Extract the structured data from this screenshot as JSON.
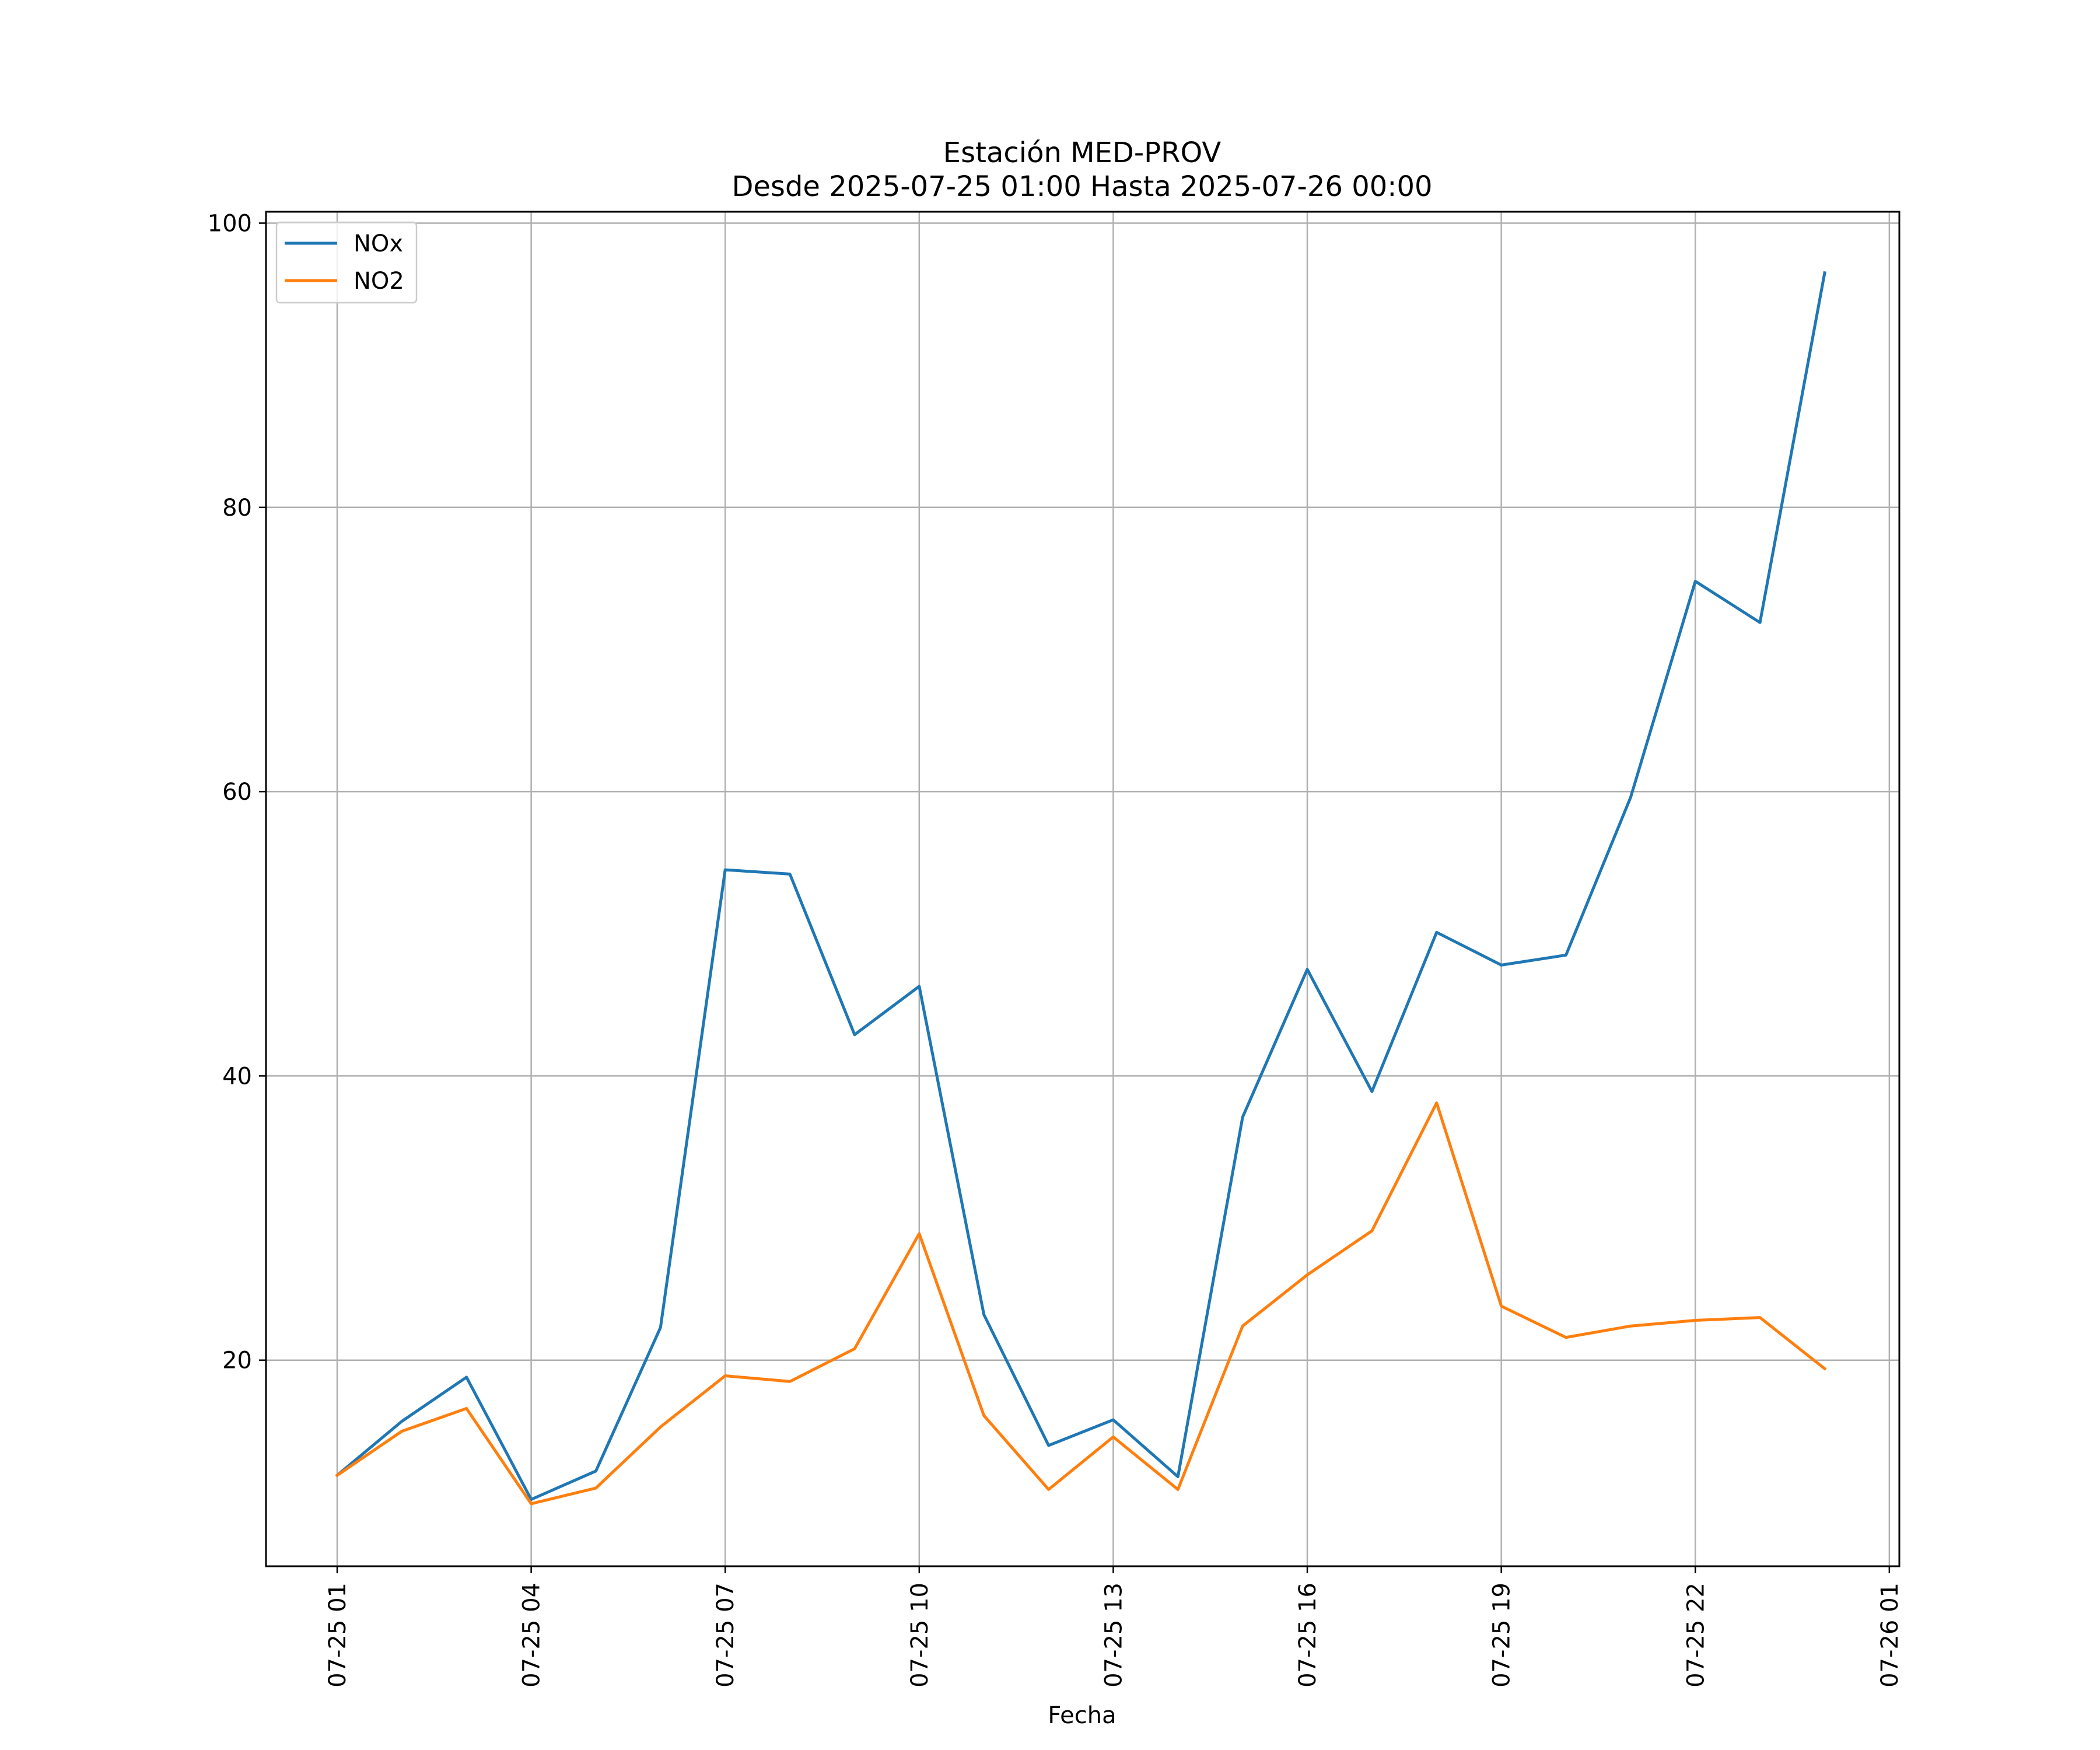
{
  "chart_data": {
    "type": "line",
    "title": "Estación MED-PROV",
    "subtitle": "Desde 2025-07-25 01:00 Hasta 2025-07-26 00:00",
    "xlabel": "Fecha",
    "ylabel": "",
    "x": [
      "07-25 01",
      "07-25 02",
      "07-25 03",
      "07-25 04",
      "07-25 05",
      "07-25 06",
      "07-25 07",
      "07-25 08",
      "07-25 09",
      "07-25 10",
      "07-25 11",
      "07-25 12",
      "07-25 13",
      "07-25 14",
      "07-25 15",
      "07-25 16",
      "07-25 17",
      "07-25 18",
      "07-25 19",
      "07-25 20",
      "07-25 21",
      "07-25 22",
      "07-25 23",
      "07-26 00"
    ],
    "xticks": [
      "07-25 01",
      "07-25 04",
      "07-25 07",
      "07-25 10",
      "07-25 13",
      "07-25 16",
      "07-25 19",
      "07-25 22",
      "07-26 01"
    ],
    "ylim": [
      5.5,
      100.8
    ],
    "yticks": [
      20,
      40,
      60,
      80,
      100
    ],
    "grid": true,
    "legend_position": "top-left",
    "series": [
      {
        "name": "NOx",
        "color": "#1f77b4",
        "values": [
          11.9,
          15.7,
          18.8,
          10.2,
          12.2,
          22.3,
          54.5,
          54.2,
          42.9,
          46.3,
          23.2,
          14.0,
          15.8,
          11.8,
          37.1,
          47.5,
          38.9,
          50.1,
          47.8,
          48.5,
          59.6,
          74.8,
          71.9,
          96.5
        ]
      },
      {
        "name": "NO2",
        "color": "#ff7f0e",
        "values": [
          11.9,
          15.0,
          16.6,
          9.9,
          11.0,
          15.3,
          18.9,
          18.5,
          20.8,
          28.9,
          16.1,
          10.9,
          14.6,
          10.9,
          22.4,
          26.0,
          29.1,
          38.1,
          23.8,
          21.6,
          22.4,
          22.8,
          23.0,
          19.4
        ]
      }
    ]
  }
}
